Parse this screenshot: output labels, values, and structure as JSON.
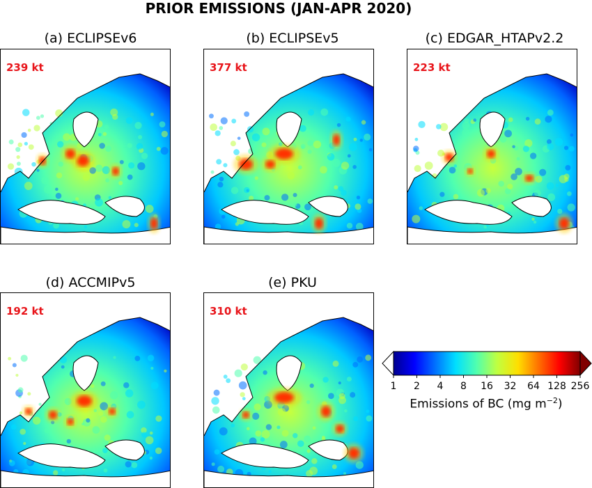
{
  "title": "PRIOR EMISSIONS (JAN-APR 2020)",
  "chart_data": [
    {
      "type": "heatmap",
      "title": "(a) ECLIPSEv6",
      "annotation": "239 kt",
      "total_kt": 239
    },
    {
      "type": "heatmap",
      "title": "(b) ECLIPSEv5",
      "annotation": "377 kt",
      "total_kt": 377
    },
    {
      "type": "heatmap",
      "title": "(c) EDGAR_HTAPv2.2",
      "annotation": "223 kt",
      "total_kt": 223
    },
    {
      "type": "heatmap",
      "title": "(d) ACCMIPv5",
      "annotation": "192 kt",
      "total_kt": 192
    },
    {
      "type": "heatmap",
      "title": "(e) PKU",
      "annotation": "310 kt",
      "total_kt": 310
    }
  ],
  "colorbar": {
    "label_main": "Emissions of BC (mg m",
    "label_sup": "−2",
    "label_close": ")",
    "ticks": [
      "1",
      "2",
      "4",
      "8",
      "16",
      "32",
      "64",
      "128",
      "256"
    ],
    "scale": "log2",
    "extend": "both",
    "colors": [
      "#00008f",
      "#0000ff",
      "#0070ff",
      "#00dfff",
      "#50ffaf",
      "#c0ff40",
      "#ffdf00",
      "#ff7000",
      "#ff0000",
      "#800000"
    ]
  }
}
